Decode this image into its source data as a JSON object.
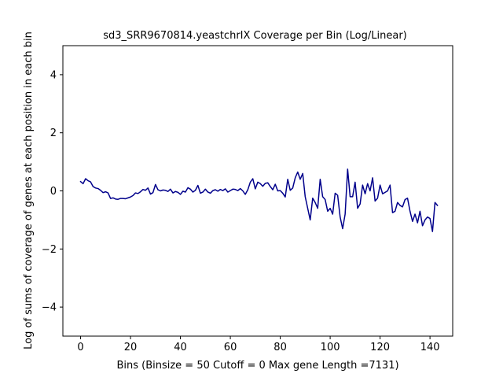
{
  "chart_data": {
    "type": "line",
    "title": "sd3_SRR9670814.yeastchrIX Coverage per Bin (Log/Linear)",
    "xlabel": "Bins  (Binsize = 50 Cutoff = 0 Max gene Length =7131)",
    "ylabel": "Log of sums of coverage of genes at each position in each bin",
    "xlim": [
      -7.1,
      149.1
    ],
    "ylim": [
      -5,
      5
    ],
    "x_ticks": [
      0,
      20,
      40,
      60,
      80,
      100,
      120,
      140
    ],
    "y_ticks": [
      -4,
      -2,
      0,
      2,
      4
    ],
    "grid": false,
    "line_color": "#00008b",
    "series": [
      {
        "values": [
          0.32,
          0.25,
          0.42,
          0.35,
          0.31,
          0.15,
          0.1,
          0.08,
          0.02,
          -0.06,
          -0.03,
          -0.07,
          -0.26,
          -0.24,
          -0.28,
          -0.29,
          -0.26,
          -0.26,
          -0.27,
          -0.24,
          -0.21,
          -0.16,
          -0.07,
          -0.09,
          -0.03,
          0.05,
          0.02,
          0.1,
          -0.11,
          -0.06,
          0.22,
          0.04,
          0.0,
          0.03,
          0.02,
          -0.02,
          0.06,
          -0.07,
          -0.02,
          -0.05,
          -0.12,
          -0.01,
          -0.04,
          0.11,
          0.06,
          -0.04,
          0.02,
          0.19,
          -0.08,
          -0.04,
          0.06,
          -0.04,
          -0.08,
          0.01,
          0.04,
          -0.01,
          0.05,
          0.01,
          0.07,
          -0.04,
          0.01,
          0.06,
          0.05,
          0.01,
          0.08,
          0.0,
          -0.12,
          0.04,
          0.3,
          0.42,
          0.07,
          0.3,
          0.25,
          0.16,
          0.26,
          0.28,
          0.15,
          0.04,
          0.23,
          0.0,
          0.01,
          -0.08,
          -0.21,
          0.4,
          0.02,
          0.1,
          0.45,
          0.65,
          0.4,
          0.6,
          -0.2,
          -0.6,
          -1.0,
          -0.25,
          -0.4,
          -0.6,
          0.4,
          -0.2,
          -0.3,
          -0.7,
          -0.6,
          -0.8,
          -0.08,
          -0.15,
          -0.9,
          -1.3,
          -0.8,
          0.75,
          -0.2,
          -0.2,
          0.3,
          -0.6,
          -0.45,
          0.2,
          -0.1,
          0.25,
          0.0,
          0.45,
          -0.35,
          -0.25,
          0.2,
          -0.1,
          -0.05,
          0.0,
          0.2,
          -0.75,
          -0.7,
          -0.4,
          -0.5,
          -0.55,
          -0.3,
          -0.25,
          -0.7,
          -1.05,
          -0.8,
          -1.1,
          -0.7,
          -1.2,
          -1.0,
          -0.9,
          -0.95,
          -1.4,
          -0.4,
          -0.5
        ]
      }
    ]
  }
}
